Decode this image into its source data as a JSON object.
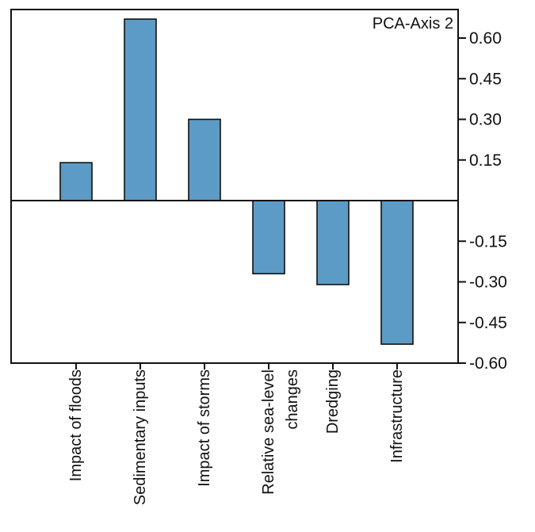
{
  "chart_data": {
    "type": "bar",
    "title": "",
    "axis_title": "PCA-Axis 2",
    "xlabel": "",
    "ylabel": "",
    "categories": [
      [
        "Impact of floods"
      ],
      [
        "Sedimentary inputs"
      ],
      [
        "Impact of storms"
      ],
      [
        "Relative sea-level",
        "changes"
      ],
      [
        "Dredging"
      ],
      [
        "Infrastructure"
      ]
    ],
    "values": [
      0.14,
      0.67,
      0.3,
      -0.27,
      -0.31,
      -0.53
    ],
    "ylim": [
      -0.6,
      0.68
    ],
    "yticks": [
      0.6,
      0.45,
      0.3,
      0.15,
      -0.15,
      -0.3,
      -0.45,
      -0.6
    ],
    "ytick_labels": [
      "0.60",
      "0.45",
      "0.30",
      "0.15",
      "-0.15",
      "-0.30",
      "-0.45",
      "-0.60"
    ],
    "y_axis_side": "right",
    "grid": false,
    "legend": "none",
    "bar_color": "#5b9bc6",
    "bar_edge_color": "#111111"
  }
}
